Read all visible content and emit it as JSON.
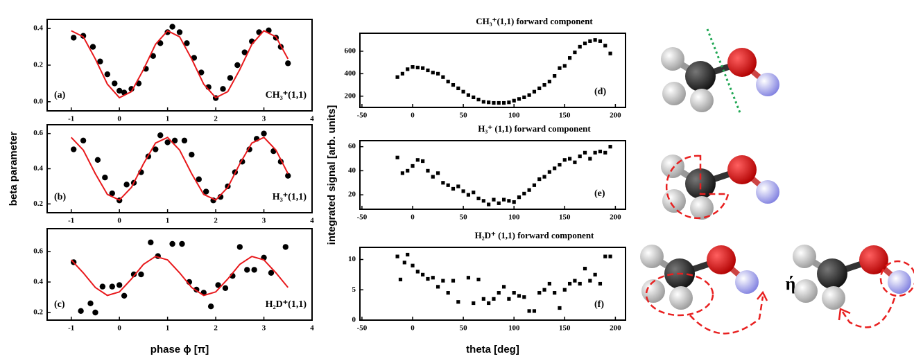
{
  "chart_data": [
    {
      "type": "scatter",
      "panel_label": "(a)",
      "label": "CH₃⁺(1,1)",
      "xlim": [
        -1.5,
        4
      ],
      "xticks": [
        -1,
        0,
        1,
        2,
        3,
        4
      ],
      "ylim": [
        -0.05,
        0.45
      ],
      "yticks": [
        {
          "value": 0,
          "label": "0.0"
        },
        0.2,
        0.4
      ],
      "grid": false,
      "series": [
        {
          "type": "scatter",
          "color": "#000000",
          "x": [
            -0.95,
            -0.75,
            -0.55,
            -0.4,
            -0.25,
            -0.1,
            0.0,
            0.1,
            0.25,
            0.4,
            0.55,
            0.7,
            0.85,
            1.0,
            1.1,
            1.25,
            1.4,
            1.55,
            1.7,
            1.85,
            2.0,
            2.15,
            2.3,
            2.45,
            2.6,
            2.75,
            2.9,
            3.1,
            3.25,
            3.35,
            3.5
          ],
          "values": [
            0.35,
            0.36,
            0.3,
            0.22,
            0.15,
            0.1,
            0.06,
            0.05,
            0.07,
            0.1,
            0.18,
            0.25,
            0.32,
            0.38,
            0.41,
            0.38,
            0.32,
            0.24,
            0.16,
            0.08,
            0.02,
            0.07,
            0.13,
            0.2,
            0.27,
            0.33,
            0.38,
            0.39,
            0.35,
            0.3,
            0.21
          ]
        },
        {
          "type": "line",
          "color": "#e8181b",
          "x": [
            -1,
            -0.75,
            -0.5,
            -0.25,
            0,
            0.25,
            0.5,
            0.75,
            1,
            1.25,
            1.5,
            1.75,
            2,
            2.25,
            2.5,
            2.75,
            3,
            3.25,
            3.5
          ],
          "values": [
            0.388,
            0.355,
            0.234,
            0.096,
            0.022,
            0.055,
            0.176,
            0.314,
            0.388,
            0.355,
            0.234,
            0.096,
            0.022,
            0.055,
            0.176,
            0.314,
            0.388,
            0.355,
            0.234
          ]
        }
      ]
    },
    {
      "type": "scatter",
      "panel_label": "(b)",
      "label": "H₃⁺(1,1)",
      "ylabel": "beta parameter",
      "xlim": [
        -1.5,
        4
      ],
      "xticks": [
        -1,
        0,
        1,
        2,
        3,
        4
      ],
      "ylim": [
        0.15,
        0.65
      ],
      "yticks": [
        0.2,
        0.4,
        0.6
      ],
      "grid": false,
      "series": [
        {
          "type": "scatter",
          "color": "#000000",
          "x": [
            -0.95,
            -0.75,
            -0.45,
            -0.3,
            -0.15,
            0,
            0.15,
            0.3,
            0.45,
            0.6,
            0.75,
            0.85,
            1.0,
            1.15,
            1.35,
            1.5,
            1.65,
            1.8,
            1.95,
            2.1,
            2.25,
            2.4,
            2.55,
            2.7,
            2.85,
            3.0,
            3.2,
            3.35,
            3.5
          ],
          "values": [
            0.51,
            0.56,
            0.45,
            0.35,
            0.26,
            0.22,
            0.31,
            0.32,
            0.38,
            0.47,
            0.51,
            0.59,
            0.55,
            0.56,
            0.56,
            0.48,
            0.34,
            0.27,
            0.22,
            0.24,
            0.3,
            0.38,
            0.44,
            0.51,
            0.57,
            0.6,
            0.5,
            0.44,
            0.36
          ]
        },
        {
          "type": "line",
          "color": "#e8181b",
          "x": [
            -1,
            -0.75,
            -0.5,
            -0.25,
            0,
            0.25,
            0.5,
            0.75,
            1,
            1.25,
            1.5,
            1.75,
            2,
            2.25,
            2.5,
            2.75,
            3,
            3.25,
            3.5
          ],
          "values": [
            0.578,
            0.506,
            0.372,
            0.254,
            0.222,
            0.294,
            0.428,
            0.546,
            0.578,
            0.506,
            0.372,
            0.254,
            0.222,
            0.294,
            0.428,
            0.546,
            0.578,
            0.506,
            0.372
          ]
        }
      ]
    },
    {
      "type": "scatter",
      "panel_label": "(c)",
      "label": "H₂D⁺(1,1)",
      "xlabel": "phase ϕ [π]",
      "xlim": [
        -1.5,
        4
      ],
      "xticks": [
        -1,
        0,
        1,
        2,
        3,
        4
      ],
      "ylim": [
        0.15,
        0.75
      ],
      "yticks": [
        0.2,
        0.4,
        0.6
      ],
      "grid": false,
      "series": [
        {
          "type": "scatter",
          "color": "#000000",
          "x": [
            -0.95,
            -0.8,
            -0.6,
            -0.5,
            -0.35,
            -0.15,
            0,
            0.1,
            0.3,
            0.45,
            0.65,
            0.8,
            1.1,
            1.3,
            1.45,
            1.6,
            1.75,
            1.9,
            2.05,
            2.2,
            2.35,
            2.5,
            2.65,
            2.8,
            3.0,
            3.15,
            3.45
          ],
          "values": [
            0.53,
            0.21,
            0.26,
            0.2,
            0.37,
            0.37,
            0.38,
            0.31,
            0.45,
            0.45,
            0.66,
            0.57,
            0.65,
            0.65,
            0.4,
            0.35,
            0.33,
            0.24,
            0.38,
            0.36,
            0.44,
            0.63,
            0.48,
            0.48,
            0.56,
            0.46,
            0.63
          ]
        },
        {
          "type": "line",
          "color": "#e8181b",
          "x": [
            -1,
            -0.75,
            -0.5,
            -0.25,
            0,
            0.25,
            0.5,
            0.75,
            1,
            1.25,
            1.5,
            1.75,
            2,
            2.25,
            2.5,
            2.75,
            3,
            3.25,
            3.5
          ],
          "values": [
            0.545,
            0.46,
            0.364,
            0.312,
            0.335,
            0.42,
            0.516,
            0.568,
            0.545,
            0.46,
            0.364,
            0.312,
            0.335,
            0.42,
            0.516,
            0.568,
            0.545,
            0.46,
            0.364
          ]
        }
      ]
    },
    {
      "type": "scatter",
      "panel_label": "(d)",
      "title": "CH₃⁺(1,1) forward component",
      "xlim": [
        -52,
        210
      ],
      "xticks": [
        -50,
        0,
        50,
        100,
        150,
        200
      ],
      "ylim": [
        100,
        760
      ],
      "yticks": [
        200,
        400,
        600
      ],
      "grid": false,
      "series": [
        {
          "type": "scatter",
          "color": "#000000",
          "x": [
            -15,
            -10,
            -5,
            0,
            5,
            10,
            15,
            20,
            25,
            30,
            35,
            40,
            45,
            50,
            55,
            60,
            65,
            70,
            75,
            80,
            85,
            90,
            95,
            100,
            105,
            110,
            115,
            120,
            125,
            130,
            135,
            140,
            145,
            150,
            155,
            160,
            165,
            170,
            175,
            180,
            185,
            190,
            195
          ],
          "values": [
            370,
            400,
            440,
            460,
            455,
            450,
            430,
            410,
            400,
            370,
            330,
            300,
            270,
            240,
            210,
            190,
            170,
            150,
            145,
            140,
            140,
            140,
            145,
            160,
            175,
            190,
            210,
            240,
            270,
            300,
            330,
            380,
            450,
            470,
            540,
            590,
            640,
            670,
            690,
            700,
            690,
            650,
            580
          ]
        }
      ]
    },
    {
      "type": "scatter",
      "panel_label": "(e)",
      "title": "H₃⁺ (1,1) forward component",
      "ylabel": "integrated signal [arb. units]",
      "xlim": [
        -52,
        210
      ],
      "xticks": [
        -50,
        0,
        50,
        100,
        150,
        200
      ],
      "ylim": [
        8,
        65
      ],
      "yticks": [
        20,
        40,
        60
      ],
      "grid": false,
      "series": [
        {
          "type": "scatter",
          "color": "#000000",
          "x": [
            -15,
            -10,
            -5,
            0,
            5,
            10,
            15,
            20,
            25,
            30,
            35,
            40,
            45,
            50,
            55,
            60,
            65,
            70,
            75,
            80,
            85,
            90,
            95,
            100,
            105,
            110,
            115,
            120,
            125,
            130,
            135,
            140,
            145,
            150,
            155,
            160,
            165,
            170,
            175,
            180,
            185,
            190,
            195
          ],
          "values": [
            51,
            38,
            40,
            44,
            49,
            48,
            40,
            35,
            38,
            30,
            28,
            25,
            27,
            23,
            20,
            22,
            17,
            15,
            12,
            16,
            13,
            16,
            15,
            14,
            18,
            21,
            24,
            28,
            33,
            35,
            39,
            42,
            45,
            49,
            50,
            47,
            52,
            55,
            50,
            55,
            56,
            55,
            60
          ]
        }
      ]
    },
    {
      "type": "scatter",
      "panel_label": "(f)",
      "title": "H₂D⁺ (1,1) forward component",
      "xlabel": "theta [deg]",
      "xlim": [
        -52,
        210
      ],
      "xticks": [
        -50,
        0,
        50,
        100,
        150,
        200
      ],
      "ylim": [
        0,
        12
      ],
      "yticks": [
        0,
        5,
        10
      ],
      "grid": false,
      "series": [
        {
          "type": "scatter",
          "color": "#000000",
          "x": [
            -15,
            -12,
            -8,
            -5,
            0,
            5,
            10,
            15,
            20,
            25,
            30,
            35,
            40,
            45,
            55,
            60,
            65,
            70,
            75,
            80,
            85,
            90,
            95,
            100,
            105,
            110,
            115,
            120,
            125,
            130,
            135,
            140,
            145,
            150,
            155,
            160,
            165,
            170,
            175,
            180,
            185,
            190,
            195
          ],
          "values": [
            10.5,
            6.7,
            9.5,
            10.8,
            9,
            8,
            7.5,
            6.8,
            7,
            5.5,
            6.5,
            4.5,
            6.5,
            3,
            7,
            2.8,
            6.7,
            3.5,
            2.8,
            3.5,
            4.5,
            5.5,
            3.5,
            4.5,
            4,
            3.8,
            1.5,
            1.5,
            4.5,
            5,
            6,
            4.5,
            2,
            5,
            6,
            6.5,
            6,
            8.5,
            6.5,
            7.5,
            6,
            10.5,
            10.5
          ]
        }
      ]
    }
  ],
  "symbol": "ή"
}
